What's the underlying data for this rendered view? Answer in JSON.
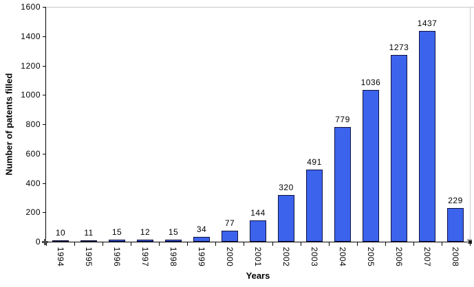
{
  "chart_data": {
    "type": "bar",
    "categories": [
      "1994",
      "1995",
      "1996",
      "1997",
      "1998",
      "1999",
      "2000",
      "2001",
      "2002",
      "2003",
      "2004",
      "2005",
      "2006",
      "2007",
      "2008"
    ],
    "values": [
      10,
      11,
      15,
      12,
      15,
      34,
      77,
      144,
      320,
      491,
      779,
      1036,
      1273,
      1437,
      229
    ],
    "value_labels": [
      "10",
      "11",
      "15",
      "12",
      "15",
      "34",
      "77",
      "144",
      "320",
      "491",
      "779",
      "1036",
      "1273",
      "1437",
      "229"
    ],
    "xlabel": "Years",
    "ylabel": "Number of patents filled",
    "ylim": [
      0,
      1600
    ],
    "ytick_step": 200,
    "yticks": [
      0,
      200,
      400,
      600,
      800,
      1000,
      1200,
      1400,
      1600
    ],
    "grid": false,
    "legend": null,
    "colors": {
      "bar_fill": "#3B63EC",
      "bar_border": "#10103F",
      "plot_border": "#C8C8C8",
      "axis": "#000000",
      "text": "#000000",
      "background": "#FFFFFF"
    }
  }
}
